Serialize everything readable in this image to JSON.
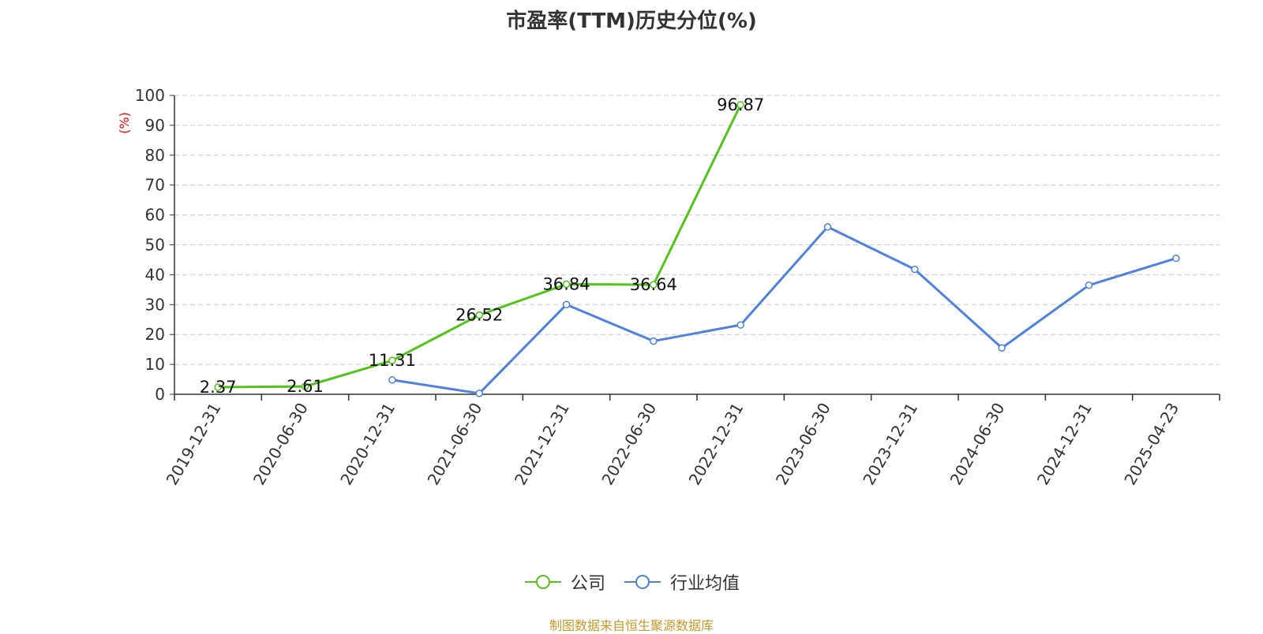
{
  "chart_data": {
    "type": "line",
    "title": "市盈率(TTM)历史分位(%)",
    "ylabel": "(%)",
    "ylim": [
      0,
      100
    ],
    "yticks": [
      0,
      10,
      20,
      30,
      40,
      50,
      60,
      70,
      80,
      90,
      100
    ],
    "grid": true,
    "legend_position": "bottom",
    "categories": [
      "2019-12-31",
      "2020-06-30",
      "2020-12-31",
      "2021-06-30",
      "2021-12-31",
      "2022-06-30",
      "2022-12-31",
      "2023-06-30",
      "2023-12-31",
      "2024-06-30",
      "2024-12-31",
      "2025-04-23"
    ],
    "series": [
      {
        "name": "公司",
        "color": "#52c41a",
        "show_labels": true,
        "values": [
          2.37,
          2.61,
          11.31,
          26.52,
          36.84,
          36.64,
          96.87,
          null,
          null,
          null,
          null,
          null
        ]
      },
      {
        "name": "行业均值",
        "color": "#4f81e0",
        "show_labels": false,
        "values": [
          null,
          null,
          4.8,
          0.3,
          30.0,
          17.8,
          23.2,
          56.0,
          41.8,
          15.5,
          36.5,
          45.5
        ]
      }
    ]
  },
  "footer": {
    "source": "制图数据来自恒生聚源数据库"
  },
  "colors": {
    "unit_label": "#ff0000",
    "source_text": "#c49a2c",
    "grid": "#cccccc",
    "axis": "#333333"
  }
}
